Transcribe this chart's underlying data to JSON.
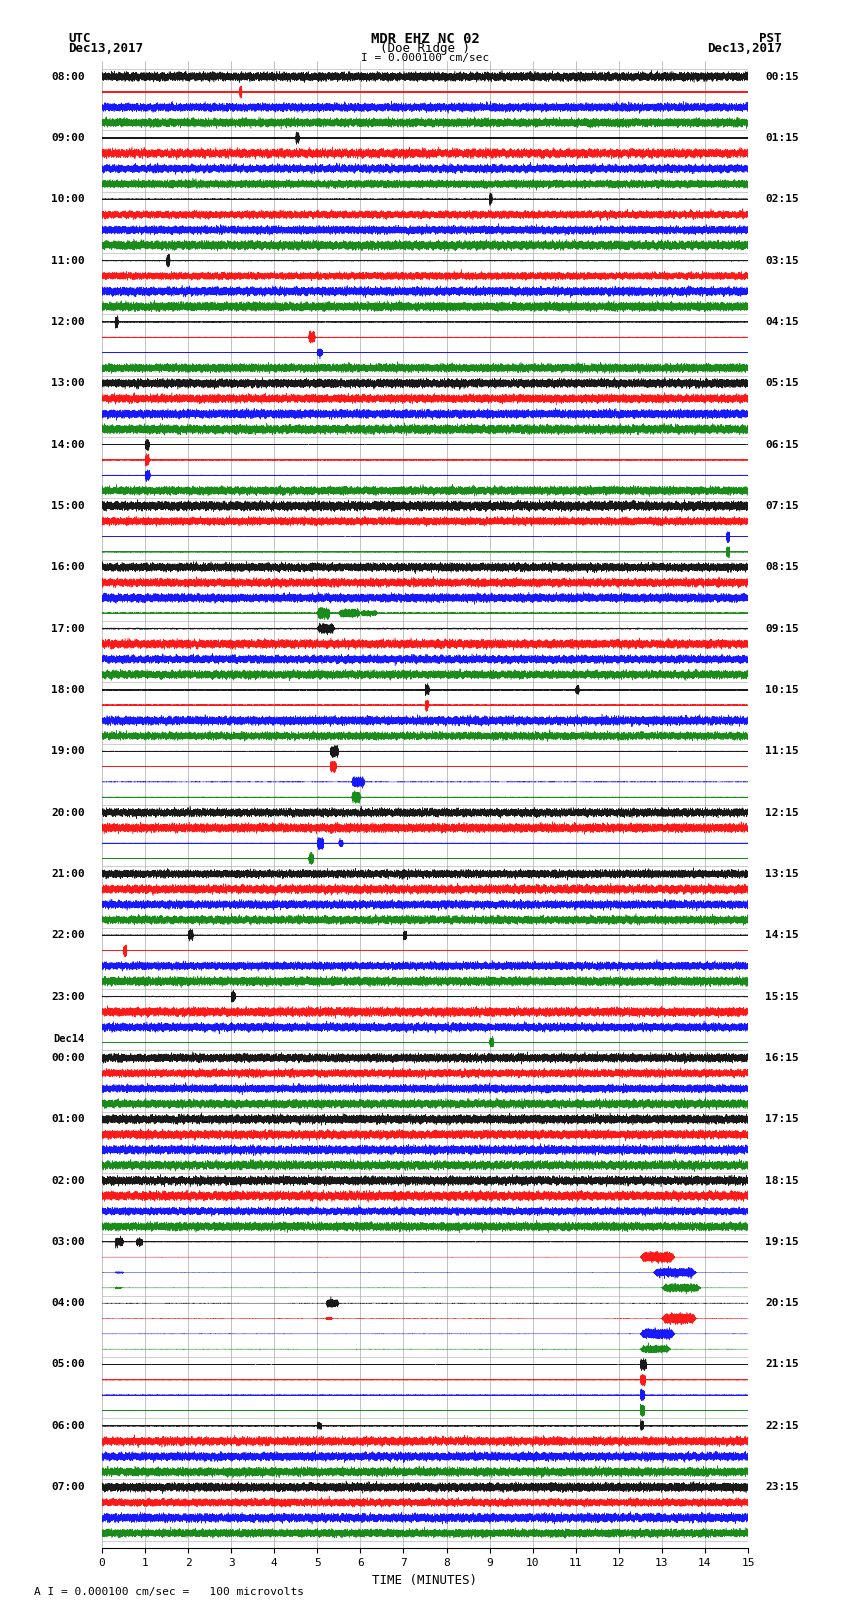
{
  "title_line1": "MDR EHZ NC 02",
  "title_line2": "(Doe Ridge )",
  "scale_text": "I = 0.000100 cm/sec",
  "bottom_text": "A I = 0.000100 cm/sec =   100 microvolts",
  "utc_label": "UTC",
  "pst_label": "PST",
  "date_left": "Dec13,2017",
  "date_right": "Dec13,2017",
  "xlabel": "TIME (MINUTES)",
  "left_times": [
    "08:00",
    "09:00",
    "10:00",
    "11:00",
    "12:00",
    "13:00",
    "14:00",
    "15:00",
    "16:00",
    "17:00",
    "18:00",
    "19:00",
    "20:00",
    "21:00",
    "22:00",
    "23:00",
    "Dec14|00:00",
    "01:00",
    "02:00",
    "03:00",
    "04:00",
    "05:00",
    "06:00",
    "07:00"
  ],
  "right_times": [
    "00:15",
    "01:15",
    "02:15",
    "03:15",
    "04:15",
    "05:15",
    "06:15",
    "07:15",
    "08:15",
    "09:15",
    "10:15",
    "11:15",
    "12:15",
    "13:15",
    "14:15",
    "15:15",
    "16:15",
    "17:15",
    "18:15",
    "19:15",
    "20:15",
    "21:15",
    "22:15",
    "23:15"
  ],
  "colors": [
    "black",
    "red",
    "blue",
    "green"
  ],
  "n_rows": 24,
  "traces_per_row": 4,
  "minutes": 15,
  "sample_rate": 100,
  "background_color": "white",
  "grid_color": "#aaaaaa",
  "fig_width": 8.5,
  "fig_height": 16.13
}
